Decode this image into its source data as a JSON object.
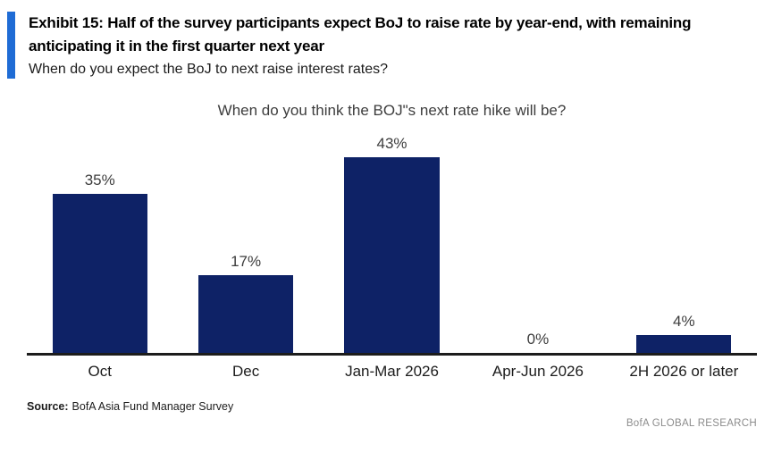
{
  "header": {
    "exhibit_title": "Exhibit 15: Half of the survey participants expect BoJ to raise rate by year-end, with remaining anticipating it in the first quarter next year",
    "subtitle": "When do you expect the BoJ to next raise interest rates?"
  },
  "chart_data": {
    "type": "bar",
    "title": "When do you think the BOJ\"s next rate hike will be?",
    "categories": [
      "Oct",
      "Dec",
      "Jan-Mar 2026",
      "Apr-Jun 2026",
      "2H 2026 or later"
    ],
    "values": [
      35,
      17,
      43,
      0,
      4
    ],
    "data_labels": [
      "35%",
      "17%",
      "43%",
      "0%",
      "4%"
    ],
    "unit": "%",
    "xlabel": "",
    "ylabel": "",
    "ylim": [
      0,
      45
    ],
    "grid": false,
    "legend": false,
    "bar_color": "#0e2266"
  },
  "footer": {
    "source_label": "Source:",
    "source_text": "BofA Asia Fund Manager Survey",
    "brand": "BofA GLOBAL RESEARCH"
  },
  "colors": {
    "accent_bar": "#1f6cd5",
    "bar": "#0e2266",
    "axis_line": "#1c1c1c",
    "brand_gray": "#8c8c8c"
  }
}
